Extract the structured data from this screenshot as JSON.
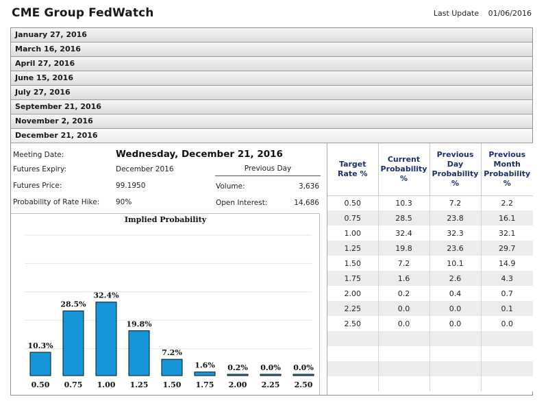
{
  "header": {
    "title": "CME Group FedWatch",
    "last_update_label": "Last Update",
    "last_update_date": "01/06/2016"
  },
  "meetings": [
    "January 27, 2016",
    "March 16, 2016",
    "April 27, 2016",
    "June 15, 2016",
    "July 27, 2016",
    "September 21, 2016",
    "November 2, 2016",
    "December 21, 2016"
  ],
  "details": {
    "meeting_date_label": "Meeting Date:",
    "meeting_date": "Wednesday, December 21, 2016",
    "futures_expiry_label": "Futures Expiry:",
    "futures_expiry": "December 2016",
    "futures_price_label": "Futures Price:",
    "futures_price": "99.1950",
    "rate_hike_label": "Probability of Rate Hike:",
    "rate_hike": "90%",
    "previous_day_label": "Previous Day",
    "volume_label": "Volume:",
    "volume": "3,636",
    "open_interest_label": "Open Interest:",
    "open_interest": "14,686"
  },
  "chart_data": {
    "type": "bar",
    "title": "Implied Probability",
    "categories": [
      "0.50",
      "0.75",
      "1.00",
      "1.25",
      "1.50",
      "1.75",
      "2.00",
      "2.25",
      "2.50"
    ],
    "values": [
      10.3,
      28.5,
      32.4,
      19.8,
      7.2,
      1.6,
      0.2,
      0.0,
      0.0
    ],
    "data_labels": [
      "10.3%",
      "28.5%",
      "32.4%",
      "19.8%",
      "7.2%",
      "1.6%",
      "0.2%",
      "0.0%",
      "0.0%"
    ],
    "ylim": [
      0,
      100
    ],
    "grid": true
  },
  "table": {
    "headers": [
      "Target Rate %",
      "Current Probability %",
      "Previous Day Probability %",
      "Previous Month Probability %"
    ],
    "rows": [
      [
        "0.50",
        "10.3",
        "7.2",
        "2.2"
      ],
      [
        "0.75",
        "28.5",
        "23.8",
        "16.1"
      ],
      [
        "1.00",
        "32.4",
        "32.3",
        "32.1"
      ],
      [
        "1.25",
        "19.8",
        "23.6",
        "29.7"
      ],
      [
        "1.50",
        "7.2",
        "10.1",
        "14.9"
      ],
      [
        "1.75",
        "1.6",
        "2.6",
        "4.3"
      ],
      [
        "2.00",
        "0.2",
        "0.4",
        "0.7"
      ],
      [
        "2.25",
        "0.0",
        "0.0",
        "0.1"
      ],
      [
        "2.50",
        "0.0",
        "0.0",
        "0.0"
      ],
      [
        "",
        "",
        "",
        ""
      ],
      [
        "",
        "",
        "",
        ""
      ],
      [
        "",
        "",
        "",
        ""
      ],
      [
        "",
        "",
        "",
        ""
      ]
    ]
  }
}
